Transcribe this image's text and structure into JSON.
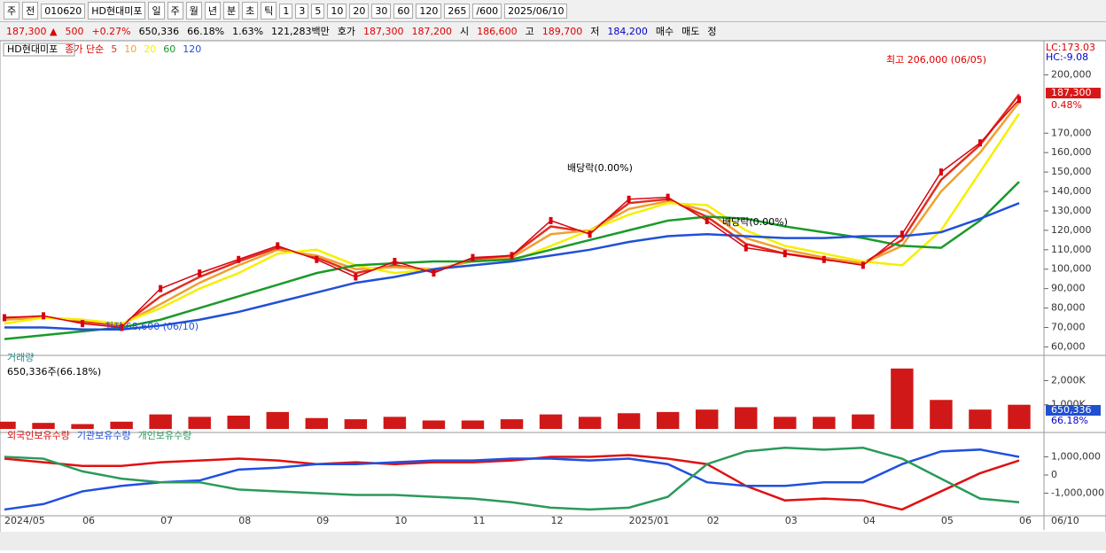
{
  "toolbar": {
    "items": [
      "주",
      "전",
      "010620",
      "HD현대미포",
      "일",
      "주",
      "월",
      "년",
      "분",
      "초",
      "틱",
      "1",
      "3",
      "5",
      "10",
      "20",
      "30",
      "60",
      "120",
      "265",
      "/600",
      "2025/06/10"
    ]
  },
  "quote": {
    "items": [
      "187,300 ▲",
      "500",
      "+0.27%",
      "650,336",
      "66.18%",
      "1.63%",
      "121,283백만",
      "호가",
      "187,300",
      "187,200",
      "시",
      "186,600",
      "고",
      "189,700",
      "저",
      "184,200",
      "매수",
      "매도",
      "정"
    ]
  },
  "chart_data": [
    {
      "type": "line",
      "title": "HD현대미포",
      "legend_prefix": "종가 단순",
      "categories": [
        "2024/05",
        null,
        "06",
        null,
        "07",
        null,
        "08",
        null,
        "09",
        null,
        "10",
        null,
        "11",
        null,
        "12",
        null,
        "2025/01",
        null,
        "02",
        null,
        "03",
        null,
        "04",
        null,
        "05",
        null,
        "06"
      ],
      "x_end_label": "06/10",
      "close": [
        75000,
        76000,
        72000,
        70000,
        90000,
        98000,
        105000,
        112000,
        105000,
        96000,
        104000,
        98000,
        106000,
        107000,
        125000,
        118000,
        136000,
        137000,
        125000,
        111000,
        108000,
        105000,
        102000,
        118000,
        150000,
        165000,
        187300
      ],
      "close_color": "#d8000f",
      "series": [
        {
          "name": "5",
          "color": "#e0301e",
          "values": [
            75000,
            75500,
            73000,
            71000,
            86000,
            96000,
            104000,
            111000,
            106000,
            98000,
            102000,
            99000,
            105000,
            107000,
            122000,
            119000,
            134000,
            136000,
            127000,
            113000,
            108000,
            105000,
            103000,
            115000,
            146000,
            164000,
            190000
          ]
        },
        {
          "name": "10",
          "color": "#f0a030",
          "values": [
            74000,
            75000,
            74000,
            71500,
            82000,
            93000,
            102000,
            110000,
            107000,
            100000,
            101000,
            100000,
            104000,
            106000,
            118000,
            120000,
            131000,
            135000,
            130000,
            116000,
            110000,
            106000,
            103000,
            112000,
            140000,
            160000,
            186000
          ]
        },
        {
          "name": "20",
          "color": "#f5f000",
          "values": [
            72000,
            75000,
            74000,
            72000,
            80000,
            90000,
            98000,
            108000,
            110000,
            102000,
            98000,
            100000,
            102000,
            104000,
            112000,
            120000,
            128000,
            134000,
            133000,
            120000,
            112000,
            108000,
            104000,
            102000,
            120000,
            150000,
            180000
          ]
        },
        {
          "name": "60",
          "color": "#1a9a2a",
          "values": [
            64000,
            66000,
            68000,
            70000,
            74000,
            80000,
            86000,
            92000,
            98000,
            102000,
            103000,
            104000,
            104000,
            105000,
            110000,
            115000,
            120000,
            125000,
            127000,
            126000,
            122000,
            119000,
            116000,
            112000,
            111000,
            125000,
            145000
          ]
        },
        {
          "name": "120",
          "color": "#2050d8",
          "values": [
            70000,
            70000,
            69000,
            69000,
            71000,
            74000,
            78000,
            83000,
            88000,
            93000,
            96000,
            100000,
            102000,
            104000,
            107000,
            110000,
            114000,
            117000,
            118000,
            117000,
            116000,
            116000,
            117000,
            117000,
            119000,
            126000,
            134000
          ]
        }
      ],
      "ylim": [
        57000,
        213000
      ],
      "yticks": [
        {
          "value": 60000,
          "label": "60,000"
        },
        {
          "value": 70000,
          "label": "70,000"
        },
        {
          "value": 80000,
          "label": "80,000"
        },
        {
          "value": 90000,
          "label": "90,000"
        },
        {
          "value": 100000,
          "label": "100,000"
        },
        {
          "value": 110000,
          "label": "110,000"
        },
        {
          "value": 120000,
          "label": "120,000"
        },
        {
          "value": 130000,
          "label": "130,000"
        },
        {
          "value": 140000,
          "label": "140,000"
        },
        {
          "value": 150000,
          "label": "150,000"
        },
        {
          "value": 160000,
          "label": "160,000"
        },
        {
          "value": 170000,
          "label": "170,000"
        },
        {
          "value": 200000,
          "label": "200,000"
        }
      ],
      "annotations": [
        "최고 206,000 (06/05)",
        "최저 68,600 (06/10)",
        "배당락(0.00%)",
        "배당락(0.00%)"
      ],
      "side_labels": [
        "LC:173.03",
        "HC:-9.08",
        "187,300",
        "0.48%"
      ]
    },
    {
      "type": "bar",
      "title": "거래량",
      "subtitle": "650,336주(66.18%)",
      "color": "#d01818",
      "values": [
        300000,
        250000,
        200000,
        300000,
        600000,
        500000,
        550000,
        700000,
        450000,
        400000,
        500000,
        350000,
        350000,
        400000,
        600000,
        500000,
        650000,
        700000,
        800000,
        900000,
        500000,
        500000,
        600000,
        2500000,
        1200000,
        800000,
        1000000
      ],
      "ylim": [
        0,
        2860000
      ],
      "yticks": [
        {
          "value": 1000000,
          "label": "1,000K"
        },
        {
          "value": 2000000,
          "label": "2,000K"
        }
      ],
      "side_labels": [
        "650,336",
        "66.18%"
      ]
    },
    {
      "type": "line",
      "series": [
        {
          "name": "외국인보유수량",
          "color": "#e01010",
          "values": [
            900000,
            700000,
            500000,
            500000,
            700000,
            800000,
            900000,
            800000,
            600000,
            700000,
            600000,
            700000,
            700000,
            800000,
            1000000,
            1000000,
            1100000,
            900000,
            600000,
            -600000,
            -1400000,
            -1300000,
            -1400000,
            -1900000,
            -900000,
            100000,
            800000
          ]
        },
        {
          "name": "기관보유수량",
          "color": "#2050e0",
          "values": [
            -1900000,
            -1600000,
            -900000,
            -600000,
            -400000,
            -300000,
            300000,
            400000,
            600000,
            600000,
            700000,
            800000,
            800000,
            900000,
            900000,
            800000,
            900000,
            600000,
            -400000,
            -600000,
            -600000,
            -400000,
            -400000,
            600000,
            1300000,
            1400000,
            1000000
          ]
        },
        {
          "name": "개인보유수량",
          "color": "#2a9a5a",
          "values": [
            1000000,
            900000,
            200000,
            -200000,
            -400000,
            -400000,
            -800000,
            -900000,
            -1000000,
            -1100000,
            -1100000,
            -1200000,
            -1300000,
            -1500000,
            -1800000,
            -1900000,
            -1800000,
            -1200000,
            600000,
            1300000,
            1500000,
            1400000,
            1500000,
            900000,
            -200000,
            -1300000,
            -1500000
          ]
        }
      ],
      "ylim": [
        -2050000,
        2050000
      ],
      "yticks": [
        {
          "value": 1000000,
          "label": "1,000,000"
        },
        0,
        {
          "value": -1000000,
          "label": "-1,000,000"
        }
      ]
    }
  ]
}
